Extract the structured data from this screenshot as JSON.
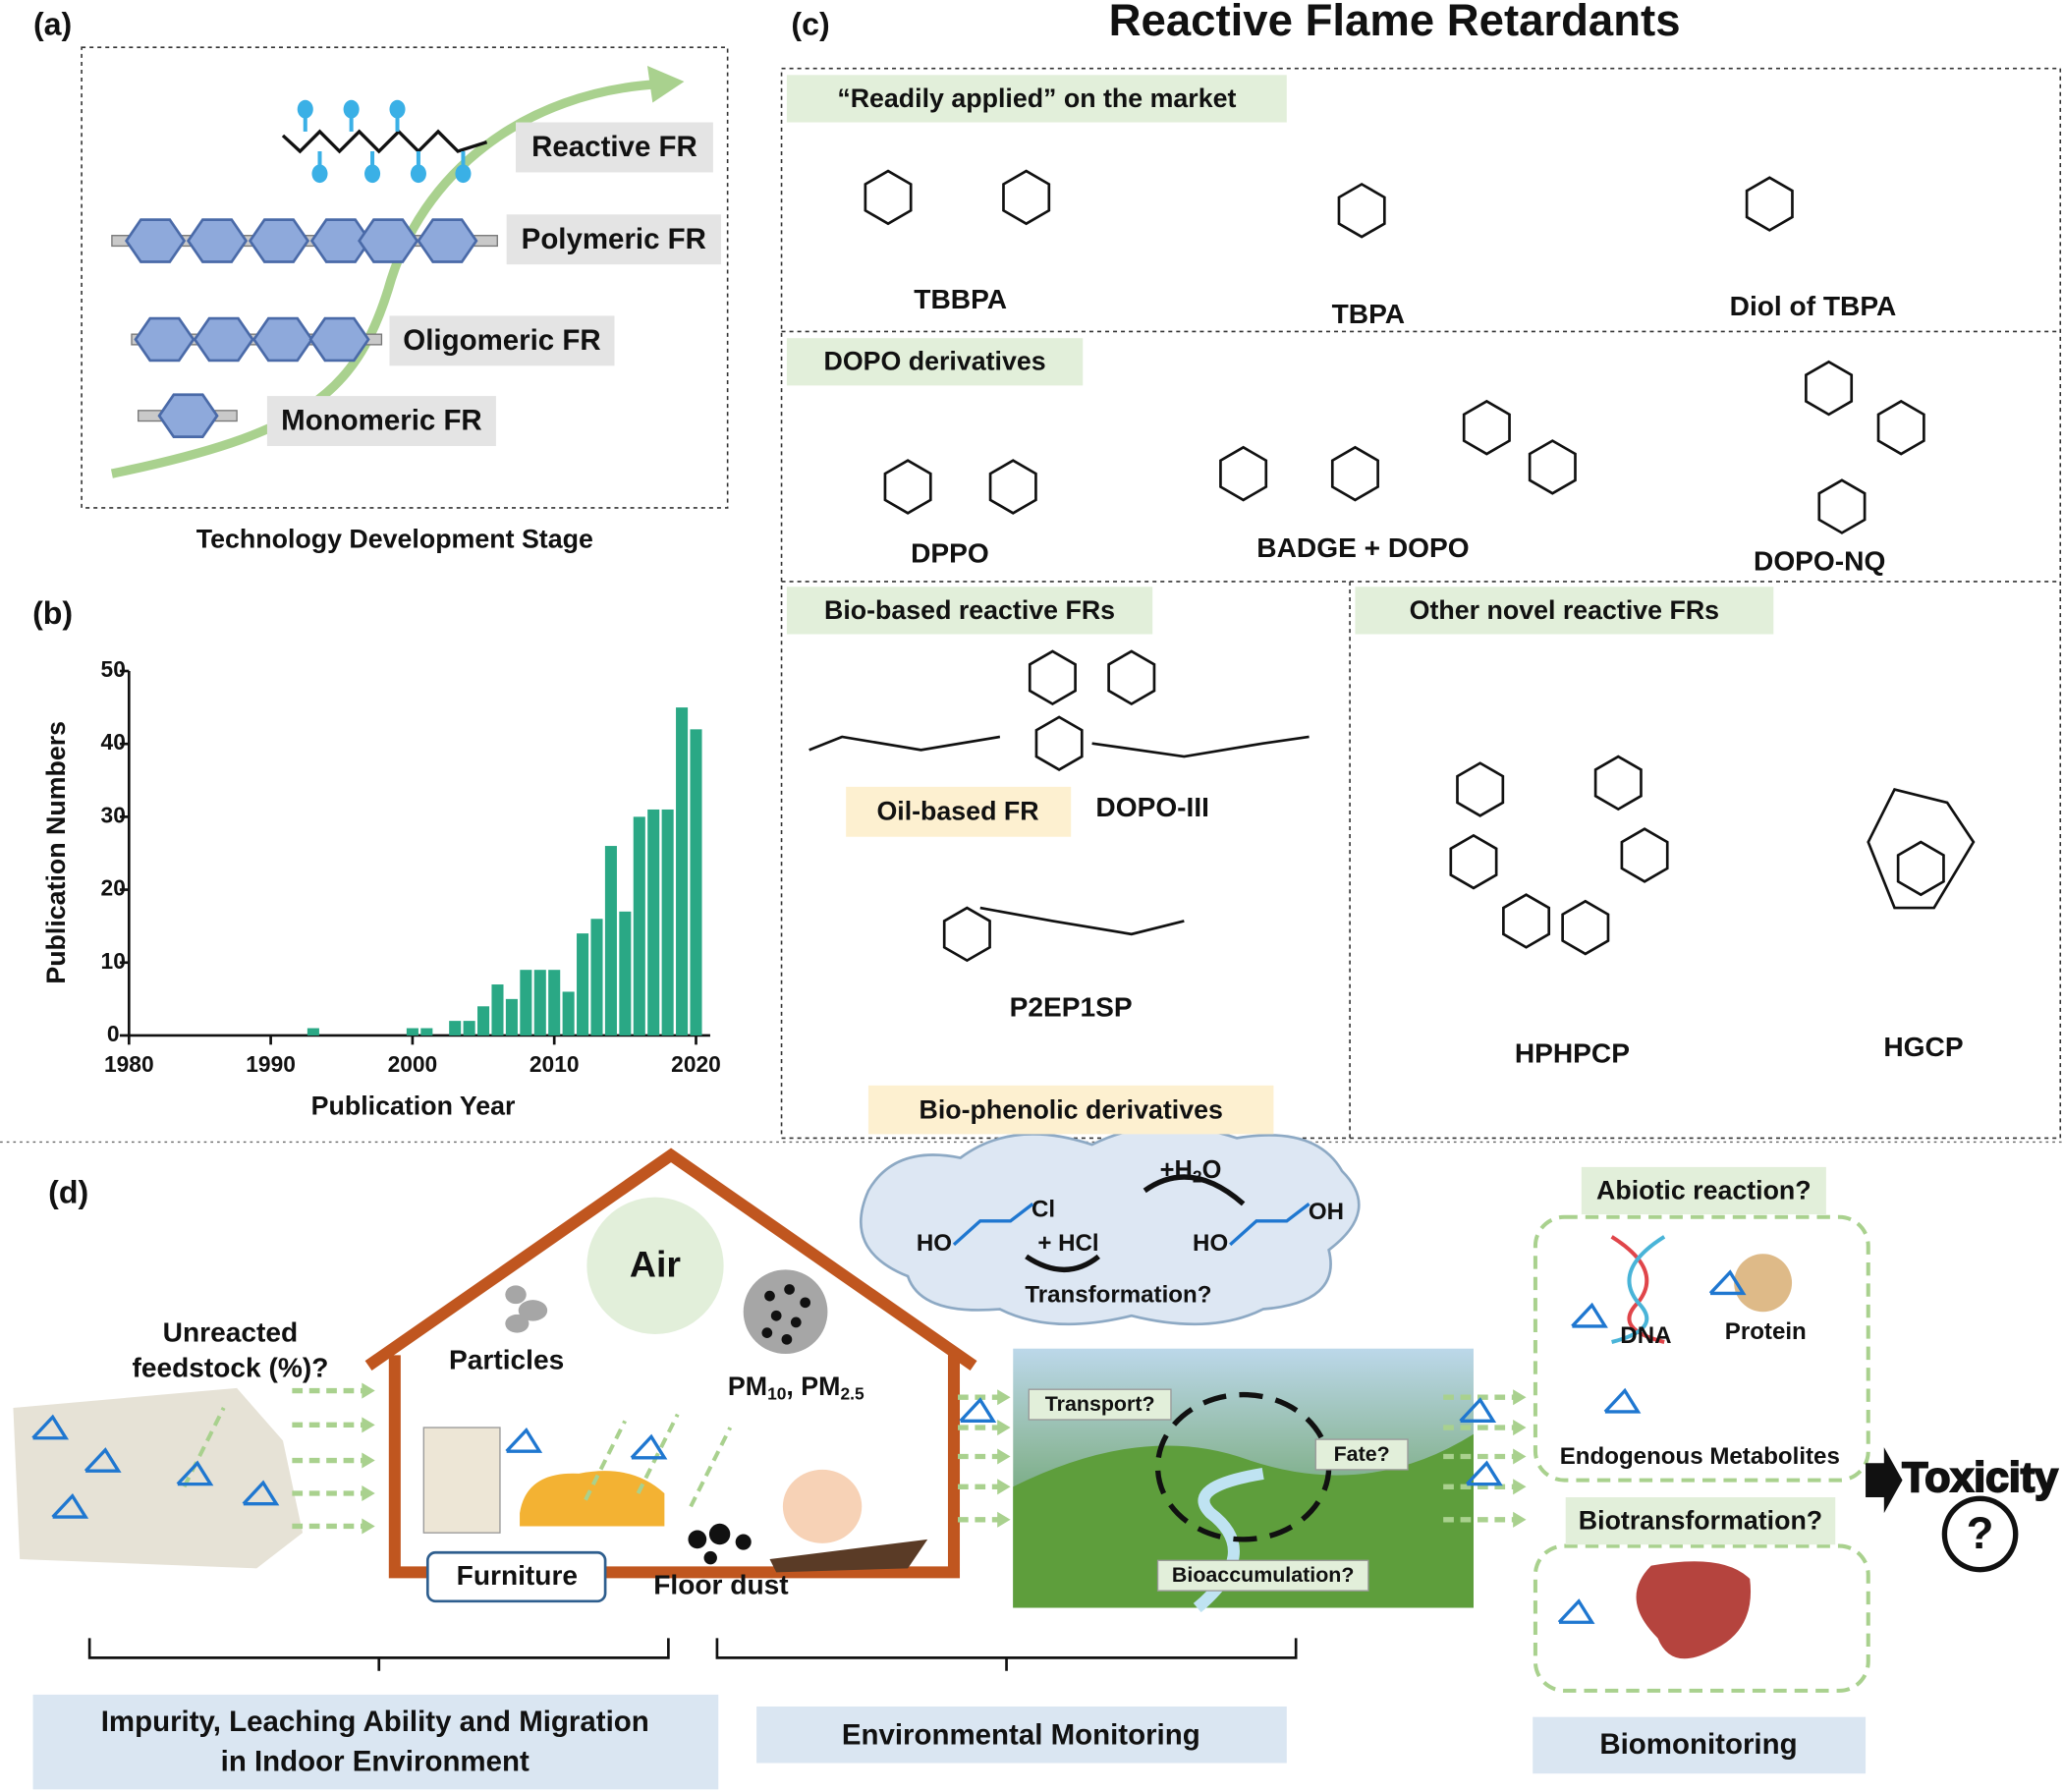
{
  "panel_a": {
    "label": "(a)",
    "items": [
      "Reactive FR",
      "Polymeric FR",
      "Oligomeric FR",
      "Monomeric FR"
    ],
    "xlabel": "Technology Development Stage"
  },
  "panel_b": {
    "label": "(b)"
  },
  "chart_data": {
    "type": "bar",
    "xlabel": "Publication Year",
    "ylabel": "Publication Numbers",
    "x": [
      1993,
      2000,
      2001,
      2003,
      2004,
      2005,
      2006,
      2007,
      2008,
      2009,
      2010,
      2011,
      2012,
      2013,
      2014,
      2015,
      2016,
      2017,
      2018,
      2019,
      2020
    ],
    "values": [
      1,
      1,
      1,
      2,
      2,
      4,
      7,
      5,
      9,
      9,
      9,
      6,
      14,
      16,
      26,
      17,
      30,
      31,
      31,
      45,
      42
    ],
    "color": "#2aa885",
    "xlim": [
      1980,
      2021
    ],
    "ylim": [
      0,
      50
    ],
    "xticks": [
      1980,
      1990,
      2000,
      2010,
      2020
    ],
    "yticks": [
      0,
      10,
      20,
      30,
      40,
      50
    ]
  },
  "panel_c": {
    "label": "(c)",
    "title": "Reactive Flame Retardants",
    "market": {
      "heading": "“Readily applied” on the market",
      "compounds": [
        "TBBPA",
        "TBPA",
        "Diol of TBPA"
      ]
    },
    "dopo": {
      "heading": "DOPO derivatives",
      "compounds": [
        "DPPO",
        "BADGE + DOPO",
        "DOPO-NQ"
      ]
    },
    "bio": {
      "heading": "Bio-based reactive FRs",
      "oil_label": "Oil-based FR",
      "oil_compound": "DOPO-III",
      "phenolic_compound": "P2EP1SP",
      "phenolic_label": "Bio-phenolic derivatives"
    },
    "other": {
      "heading": "Other novel reactive FRs",
      "compounds": [
        "HPHPCP",
        "HGCP"
      ]
    }
  },
  "panel_d": {
    "label": "(d)",
    "air": "Air",
    "particles": "Particles",
    "pm": [
      "PM",
      "10",
      ", PM",
      "2.5"
    ],
    "unreacted": [
      "Unreacted",
      "feedstock (%)?"
    ],
    "furniture": "Furniture",
    "floor_dust": "Floor dust",
    "water": [
      "+H",
      "2",
      "O"
    ],
    "hcl": "+ HCl",
    "molecule_labels": [
      "HO",
      "Cl",
      "HO",
      "OH"
    ],
    "transformation": "Transformation?",
    "transport": "Transport?",
    "fate": "Fate?",
    "bioaccumulation": "Bioaccumulation?",
    "abiotic": "Abiotic reaction?",
    "dna": "DNA",
    "protein": "Protein",
    "metabolites": "Endogenous Metabolites",
    "biotransformation": "Biotransformation?",
    "toxicity": "Toxicity",
    "question": "?",
    "bottom": {
      "indoor": [
        "Impurity, Leaching Ability and Migration",
        "in Indoor Environment"
      ],
      "environmental": "Environmental Monitoring",
      "biomonitoring": "Biomonitoring"
    }
  }
}
